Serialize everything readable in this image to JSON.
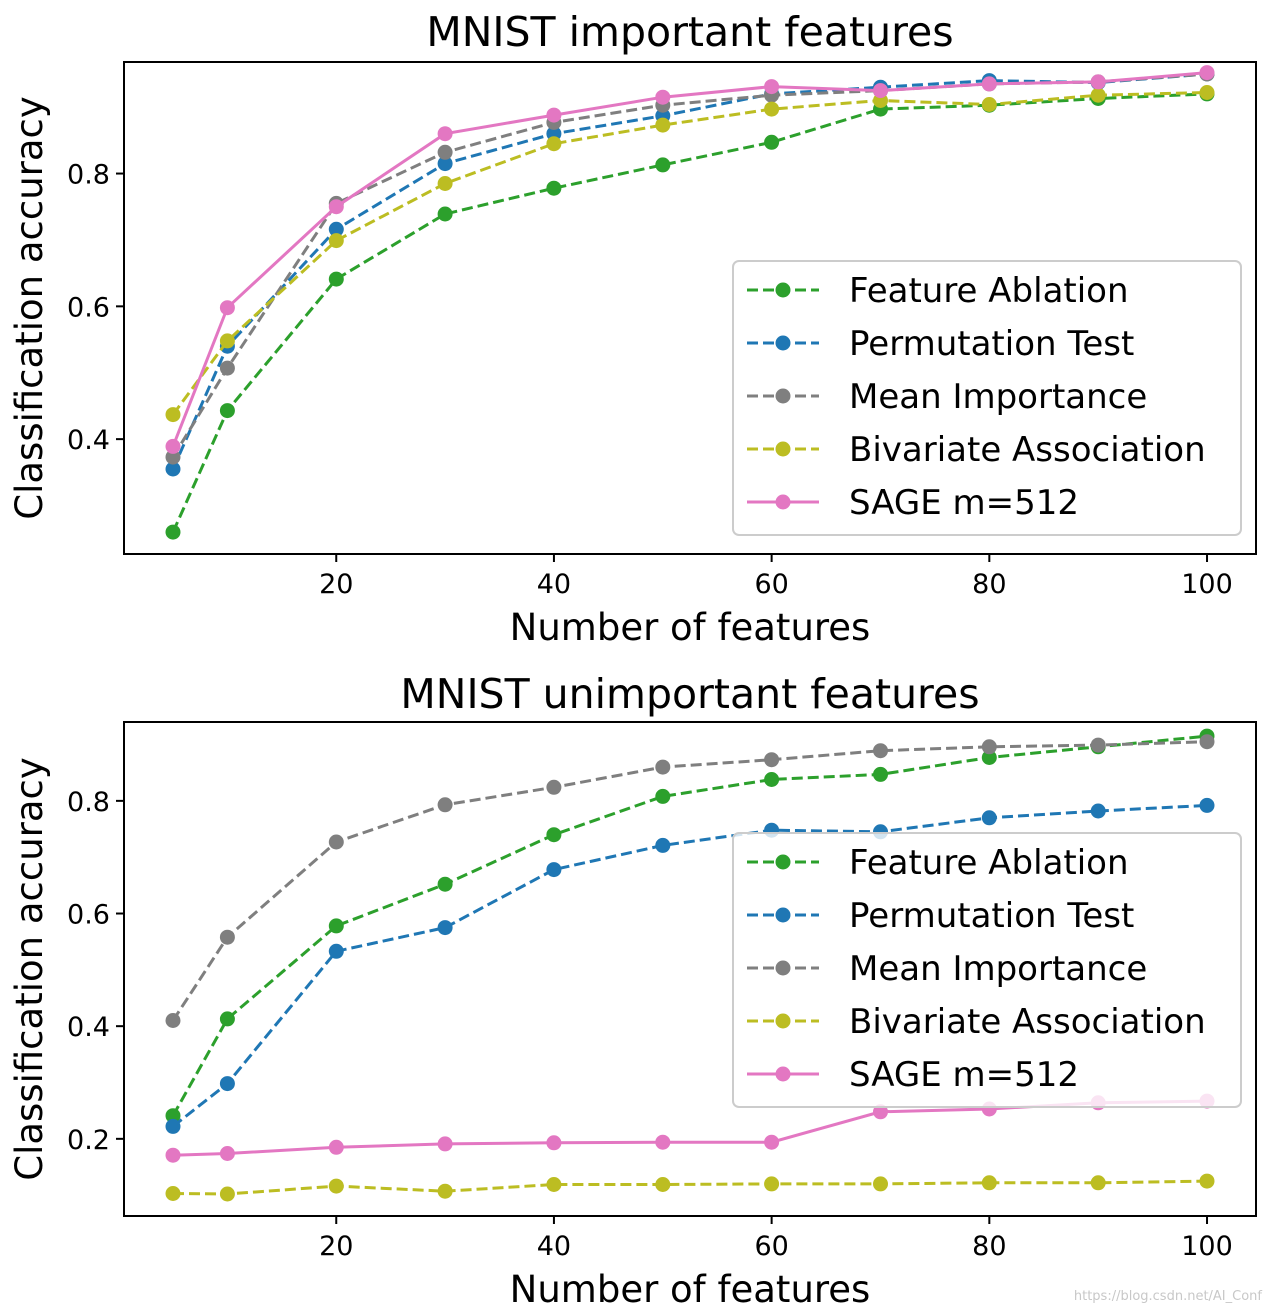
{
  "watermark": "https://blog.csdn.net/AI_Conf",
  "chart_data": [
    {
      "type": "line",
      "title": "MNIST important features",
      "xlabel": "Number of features",
      "ylabel": "Classification accuracy",
      "xlim": [
        0.5,
        104.5
      ],
      "ylim": [
        0.227,
        0.968
      ],
      "xticks": [
        20,
        40,
        60,
        80,
        100
      ],
      "xtick_labels": [
        "20",
        "40",
        "60",
        "80",
        "100"
      ],
      "yticks": [
        0.4,
        0.6,
        0.8
      ],
      "ytick_labels": [
        "0.4",
        "0.6",
        "0.8"
      ],
      "legend_position": "lower-right",
      "x": [
        5,
        10,
        20,
        30,
        40,
        50,
        60,
        70,
        80,
        90,
        100
      ],
      "series": [
        {
          "name": "Feature Ablation",
          "color": "#2ca02c",
          "dashed": true,
          "values": [
            0.26,
            0.443,
            0.641,
            0.739,
            0.778,
            0.813,
            0.847,
            0.897,
            0.903,
            0.913,
            0.92
          ]
        },
        {
          "name": "Permutation Test",
          "color": "#1f77b4",
          "dashed": true,
          "values": [
            0.355,
            0.54,
            0.716,
            0.815,
            0.86,
            0.887,
            0.92,
            0.93,
            0.94,
            0.937,
            0.95
          ]
        },
        {
          "name": "Mean Importance",
          "color": "#7f7f7f",
          "dashed": true,
          "values": [
            0.373,
            0.507,
            0.755,
            0.832,
            0.877,
            0.903,
            0.918,
            0.925,
            0.935,
            0.938,
            0.95
          ]
        },
        {
          "name": "Bivariate Association",
          "color": "#bcbd22",
          "dashed": true,
          "values": [
            0.437,
            0.548,
            0.699,
            0.785,
            0.845,
            0.873,
            0.897,
            0.91,
            0.904,
            0.918,
            0.922
          ]
        },
        {
          "name": "SAGE m=512",
          "color": "#e377c2",
          "dashed": false,
          "values": [
            0.389,
            0.598,
            0.75,
            0.86,
            0.888,
            0.915,
            0.931,
            0.925,
            0.935,
            0.938,
            0.952
          ]
        }
      ]
    },
    {
      "type": "line",
      "title": "MNIST unimportant features",
      "xlabel": "Number of features",
      "ylabel": "Classification accuracy",
      "xlim": [
        0.5,
        104.5
      ],
      "ylim": [
        0.063,
        0.94
      ],
      "xticks": [
        20,
        40,
        60,
        80,
        100
      ],
      "xtick_labels": [
        "20",
        "40",
        "60",
        "80",
        "100"
      ],
      "yticks": [
        0.2,
        0.4,
        0.6,
        0.8
      ],
      "ytick_labels": [
        "0.2",
        "0.4",
        "0.6",
        "0.8"
      ],
      "legend_position": "center-right",
      "x": [
        5,
        10,
        20,
        30,
        40,
        50,
        60,
        70,
        80,
        90,
        100
      ],
      "series": [
        {
          "name": "Feature Ablation",
          "color": "#2ca02c",
          "dashed": true,
          "values": [
            0.241,
            0.413,
            0.578,
            0.652,
            0.74,
            0.808,
            0.838,
            0.847,
            0.877,
            0.896,
            0.915
          ]
        },
        {
          "name": "Permutation Test",
          "color": "#1f77b4",
          "dashed": true,
          "values": [
            0.222,
            0.298,
            0.533,
            0.575,
            0.678,
            0.721,
            0.748,
            0.745,
            0.77,
            0.782,
            0.792
          ]
        },
        {
          "name": "Mean Importance",
          "color": "#7f7f7f",
          "dashed": true,
          "values": [
            0.41,
            0.558,
            0.727,
            0.793,
            0.824,
            0.86,
            0.873,
            0.889,
            0.896,
            0.899,
            0.905
          ]
        },
        {
          "name": "Bivariate Association",
          "color": "#bcbd22",
          "dashed": true,
          "values": [
            0.103,
            0.102,
            0.116,
            0.107,
            0.119,
            0.119,
            0.12,
            0.12,
            0.122,
            0.122,
            0.125
          ]
        },
        {
          "name": "SAGE m=512",
          "color": "#e377c2",
          "dashed": false,
          "values": [
            0.171,
            0.174,
            0.185,
            0.191,
            0.193,
            0.194,
            0.194,
            0.248,
            0.253,
            0.264,
            0.267
          ]
        }
      ]
    }
  ]
}
